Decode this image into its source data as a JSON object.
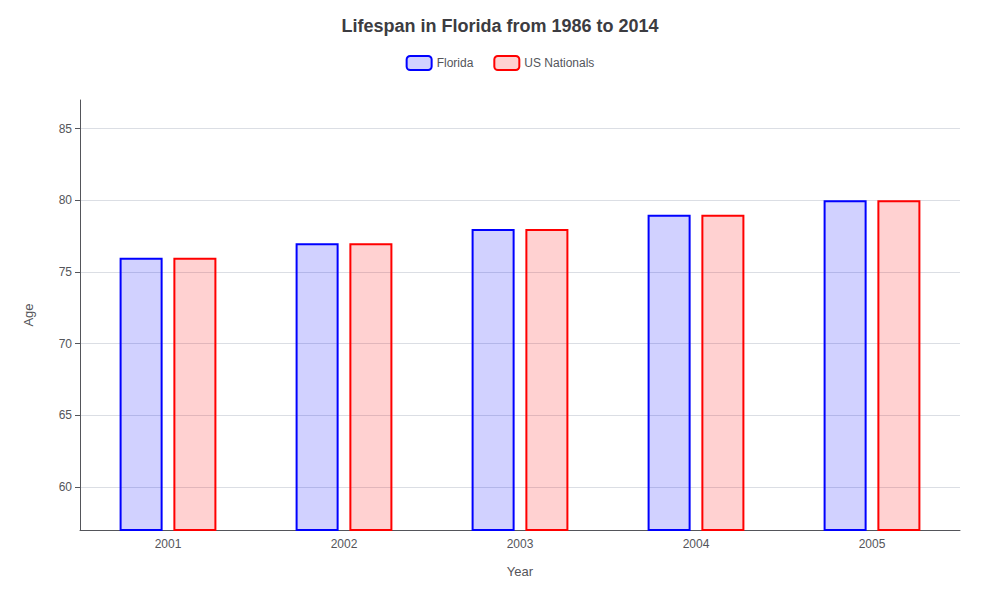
{
  "chart_data": {
    "type": "bar",
    "title": "Lifespan in Florida from 1986 to 2014",
    "x_label": "Year",
    "y_label": "Age",
    "categories": [
      "2001",
      "2002",
      "2003",
      "2004",
      "2005"
    ],
    "series": [
      {
        "name": "Florida",
        "color": "#0000ff",
        "values": [
          76,
          77,
          78,
          79,
          80
        ]
      },
      {
        "name": "US Nationals",
        "color": "#ff0000",
        "values": [
          76,
          77,
          78,
          79,
          80
        ]
      }
    ],
    "ylim": [
      57,
      87
    ],
    "yticks": [
      60,
      65,
      70,
      75,
      80,
      85
    ],
    "grid": true,
    "legend": "top"
  }
}
